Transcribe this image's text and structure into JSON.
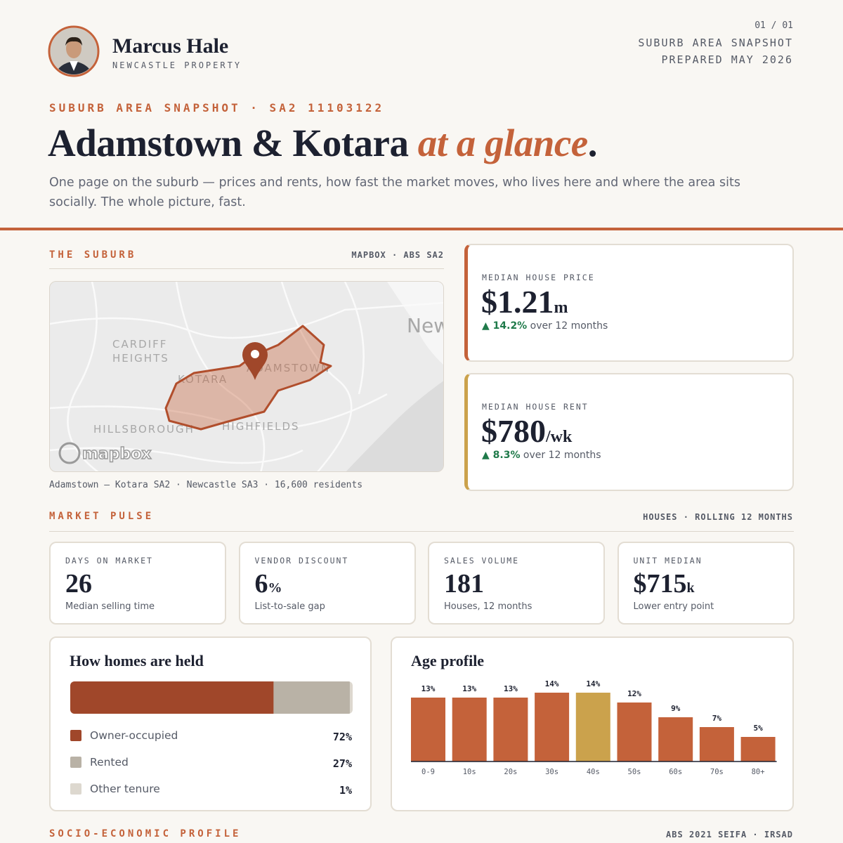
{
  "agent": {
    "name": "Marcus Hale",
    "company": "NEWCASTLE PROPERTY"
  },
  "meta": {
    "page": "01 / 01",
    "doc": "SUBURB AREA SNAPSHOT",
    "prepared": "PREPARED MAY 2026"
  },
  "hero": {
    "eyebrow": "SUBURB AREA SNAPSHOT · SA2 11103122",
    "title": "Adamstown & Kotara",
    "title_em": "at a glance",
    "title_end": ".",
    "lede": "One page on the suburb — prices and rents, how fast the market moves, who lives here and where the area sits socially. The whole picture, fast."
  },
  "suburb": {
    "heading": "THE SUBURB",
    "source": "MAPBOX · ABS SA2",
    "map_labels": [
      "CARDIFF",
      "HEIGHTS",
      "KOTARA",
      "ADAMSTOWN",
      "HILLSBOROUGH",
      "HIGHFIELDS",
      "New"
    ],
    "map_brand": "mapbox",
    "caption": "Adamstown – Kotara SA2 · Newcastle SA3 · 16,600 residents"
  },
  "kpis": [
    {
      "label": "MEDIAN HOUSE PRICE",
      "value": "$1.21",
      "unit": "m",
      "change": "▲ 14.2%",
      "period": "over 12 months"
    },
    {
      "label": "MEDIAN HOUSE RENT",
      "value": "$780",
      "unit": "/wk",
      "change": "▲ 8.3%",
      "period": "over 12 months"
    }
  ],
  "pulse": {
    "heading": "MARKET PULSE",
    "source": "HOUSES · ROLLING 12 MONTHS",
    "cards": [
      {
        "label": "DAYS ON MARKET",
        "value": "26",
        "unit": "",
        "note": "Median selling time"
      },
      {
        "label": "VENDOR DISCOUNT",
        "value": "6",
        "unit": "%",
        "note": "List-to-sale gap"
      },
      {
        "label": "SALES VOLUME",
        "value": "181",
        "unit": "",
        "note": "Houses, 12 months"
      },
      {
        "label": "UNIT MEDIAN",
        "value": "$715",
        "unit": "k",
        "note": "Lower entry point"
      }
    ]
  },
  "chart_data": [
    {
      "type": "stacked-bar",
      "title": "How homes are held",
      "categories": [
        "Owner-occupied",
        "Rented",
        "Other tenure"
      ],
      "values": [
        72,
        27,
        1
      ],
      "value_labels": [
        "72%",
        "27%",
        "1%"
      ],
      "colors": [
        "#a0472a",
        "#b9b2a6",
        "#ddd8cf"
      ]
    },
    {
      "type": "bar",
      "title": "Age profile",
      "categories": [
        "0-9",
        "10s",
        "20s",
        "30s",
        "40s",
        "50s",
        "60s",
        "70s",
        "80+"
      ],
      "values": [
        13,
        13,
        13,
        14,
        14,
        12,
        9,
        7,
        5
      ],
      "value_labels": [
        "13%",
        "13%",
        "13%",
        "14%",
        "14%",
        "12%",
        "9%",
        "7%",
        "5%"
      ],
      "colors": [
        "#c4623a",
        "#c4623a",
        "#c4623a",
        "#c4623a",
        "#cba24c",
        "#c4623a",
        "#c4623a",
        "#c4623a",
        "#c4623a"
      ]
    }
  ],
  "footer": {
    "heading": "SOCIO-ECONOMIC PROFILE",
    "source": "ABS 2021 SEIFA · IRSAD"
  }
}
